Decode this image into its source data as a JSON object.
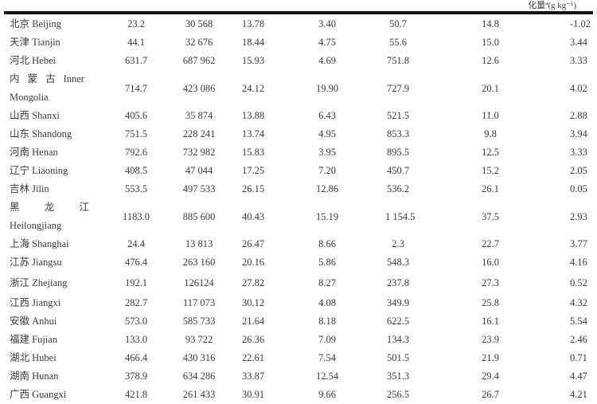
{
  "header": {
    "last_column_unit": "化量ª(g kg⁻¹)"
  },
  "rows": [
    {
      "name": "北京 Beijing",
      "values": [
        "23.2",
        "30 568",
        "13.78",
        "3.40",
        "50.7",
        "14.8",
        "-1.02"
      ]
    },
    {
      "name": "天津 Tianjin",
      "values": [
        "44.1",
        "32 676",
        "18.44",
        "4.75",
        "55.6",
        "15.0",
        "3.44"
      ]
    },
    {
      "name": "河北 Hebei",
      "values": [
        "631.7",
        "687 962",
        "15.93",
        "4.69",
        "751.8",
        "12.6",
        "3.33"
      ]
    },
    {
      "name_cn": [
        "内",
        "蒙",
        "古"
      ],
      "name_en_1": "Inner",
      "name_en_2": "Mongolia",
      "values": [
        "714.7",
        "423 086",
        "24.12",
        "19.90",
        "727.9",
        "20.1",
        "4.02"
      ]
    },
    {
      "name": "山西 Shanxi",
      "values": [
        "405.6",
        "35 874",
        "13.88",
        "6.43",
        "521.5",
        "11.0",
        "2.88"
      ]
    },
    {
      "name": "山东 Shandong",
      "values": [
        "751.5",
        "228 241",
        "13.74",
        "4.95",
        "853.3",
        "9.8",
        "3.94"
      ]
    },
    {
      "name": "河南 Henan",
      "values": [
        "792.6",
        "732 982",
        "15.83",
        "3.95",
        "895.5",
        "12.5",
        "3.33"
      ]
    },
    {
      "name": "辽宁 Liaoning",
      "values": [
        "408.5",
        "47 044",
        "17.25",
        "7.20",
        "450.7",
        "15.2",
        "2.05"
      ]
    },
    {
      "name": "吉林 Jilin",
      "values": [
        "553.5",
        "497 533",
        "26.15",
        "12.86",
        "536.2",
        "26.1",
        "0.05"
      ]
    },
    {
      "name_cn": [
        "黑",
        "龙",
        "江"
      ],
      "name_en_2": "Heilongjiang",
      "values": [
        "1183.0",
        "885 600",
        "40.43",
        "15.19",
        "1 154.5",
        "37.5",
        "2.93"
      ]
    },
    {
      "name": "上海 Shanghai",
      "values": [
        "24.4",
        "13 813",
        "26.47",
        "8.66",
        "2.3",
        "22.7",
        "3.77"
      ]
    },
    {
      "name": "江苏 Jiangsu",
      "values": [
        "476.4",
        "263 160",
        "20.16",
        "5.86",
        "548.3",
        "16.0",
        "4.16"
      ]
    },
    {
      "name": "浙江 Zhejiang",
      "values": [
        "192.1",
        "126124",
        "27.82",
        "8.27",
        "237.8",
        "27.3",
        "0.52"
      ]
    },
    {
      "name": "江西 Jiangxi",
      "values": [
        "282.7",
        "117 073",
        "30.12",
        "4.08",
        "349.9",
        "25.8",
        "4.32"
      ]
    },
    {
      "name": "安徽 Anhui",
      "values": [
        "573.0",
        "585 733",
        "21.64",
        "8.18",
        "622.5",
        "16.1",
        "5.54"
      ]
    },
    {
      "name": "福建 Fujian",
      "values": [
        "133.0",
        "93 722",
        "26.36",
        "7.09",
        "134.3",
        "23.9",
        "2.46"
      ]
    },
    {
      "name": "湖北 Hubei",
      "values": [
        "466.4",
        "430 316",
        "22.61",
        "7.54",
        "501.5",
        "21.9",
        "0.71"
      ]
    },
    {
      "name": "湖南 Hunan",
      "values": [
        "378.9",
        "634 286",
        "33.87",
        "12.54",
        "351.3",
        "29.4",
        "4.47"
      ]
    },
    {
      "name": "广西 Guangxi",
      "values": [
        "421.8",
        "261 433",
        "30.91",
        "9.66",
        "256.5",
        "26.7",
        "4.21"
      ]
    }
  ]
}
